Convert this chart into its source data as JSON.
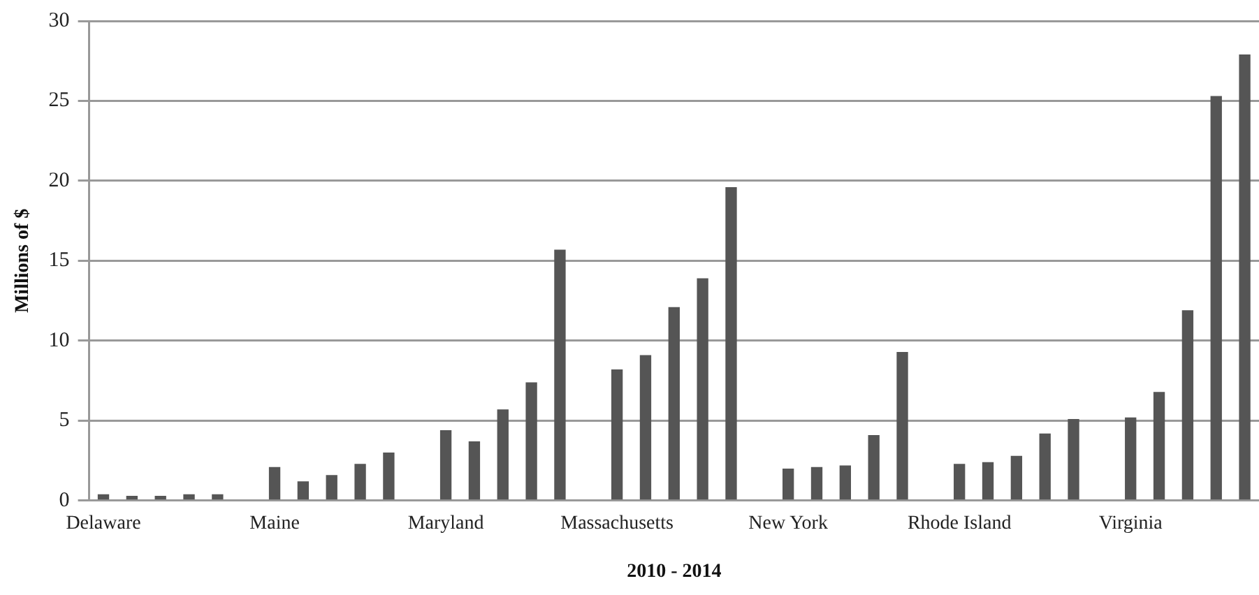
{
  "chart_data": {
    "type": "bar",
    "xlabel": "2010 - 2014",
    "ylabel": "Millions of $",
    "categories": [
      "Delaware",
      null,
      null,
      null,
      null,
      null,
      "Maine",
      null,
      null,
      null,
      null,
      null,
      "Maryland",
      null,
      null,
      null,
      null,
      null,
      "Massachusetts",
      null,
      null,
      null,
      null,
      null,
      "New York",
      null,
      null,
      null,
      null,
      null,
      "Rhode Island",
      null,
      null,
      null,
      null,
      null,
      "Virginia",
      null,
      null,
      null,
      null
    ],
    "values": [
      0.4,
      0.3,
      0.3,
      0.4,
      0.4,
      null,
      2.1,
      1.2,
      1.6,
      2.3,
      3.0,
      null,
      4.4,
      3.7,
      5.7,
      7.4,
      15.7,
      null,
      8.2,
      9.1,
      12.1,
      13.9,
      19.6,
      null,
      2.0,
      2.1,
      2.2,
      4.1,
      9.3,
      null,
      2.3,
      2.4,
      2.8,
      4.2,
      5.1,
      null,
      5.2,
      6.8,
      11.9,
      25.3,
      27.9
    ],
    "color": "#555555",
    "ylim": [
      0,
      30
    ],
    "yticks": [
      0,
      5,
      10,
      15,
      20,
      25,
      30
    ],
    "grid": "y",
    "legend": false
  }
}
